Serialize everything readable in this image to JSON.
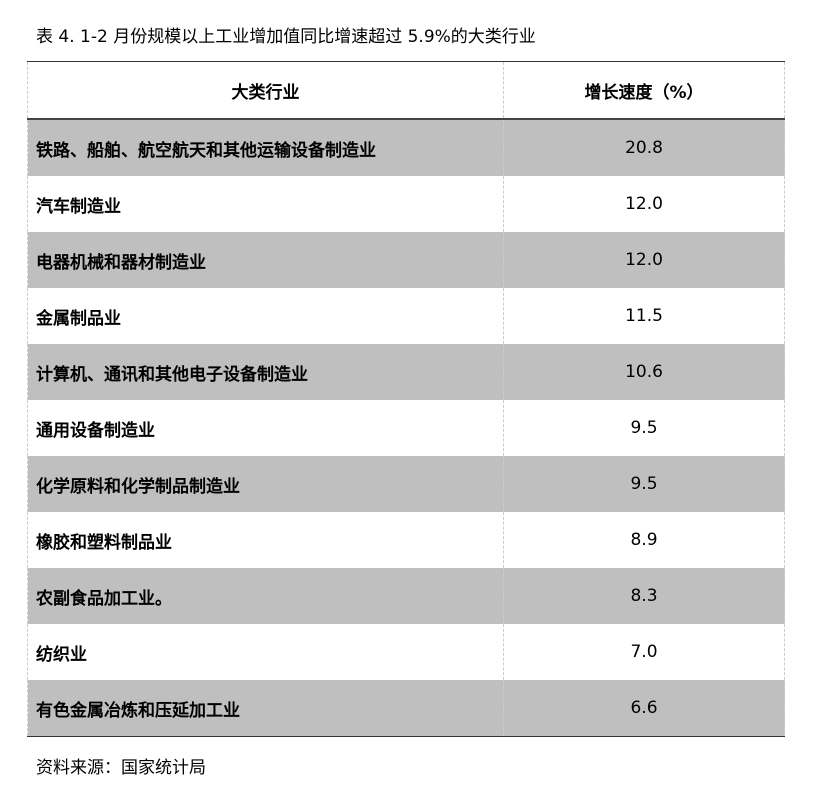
{
  "title": "表 4.   1-2 月份规模以上工业增加值同比增速超过 5.9%的大类行业",
  "table": {
    "headers": [
      "大类行业",
      "增长速度（%）"
    ],
    "rows": [
      [
        "铁路、船舶、航空航天和其他运输设备制造业",
        "20.8"
      ],
      [
        "汽车制造业",
        "12.0"
      ],
      [
        "电器机械和器材制造业",
        "12.0"
      ],
      [
        "金属制品业",
        "11.5"
      ],
      [
        "计算机、通讯和其他电子设备制造业",
        "10.6"
      ],
      [
        "通用设备制造业",
        "9.5"
      ],
      [
        "化学原料和化学制品制造业",
        "9.5"
      ],
      [
        "橡胶和塑料制品业",
        "8.9"
      ],
      [
        "农副食品加工业。",
        "8.3"
      ],
      [
        "纺织业",
        "7.0"
      ],
      [
        "有色金属冶炼和压延加工业",
        "6.6"
      ]
    ]
  },
  "source": "资料来源：国家统计局",
  "colors": {
    "stripe": "#bfbfbf",
    "border": "#333333"
  }
}
